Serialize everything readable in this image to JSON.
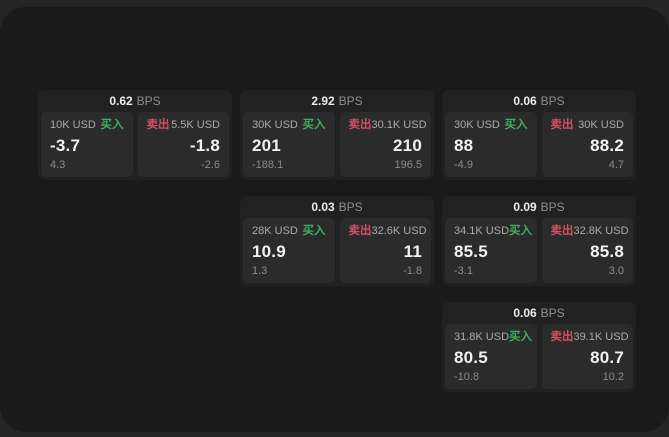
{
  "labels": {
    "buy": "买入",
    "sell": "卖出",
    "bps_unit": "BPS"
  },
  "colors": {
    "buy_accent": "#3fae5f",
    "sell_accent": "#d34f66",
    "panel_bg": "#1a1a1a",
    "card_bg": "#212121",
    "subpanel_bg": "#2b2b2b"
  },
  "cards": [
    {
      "bps": "0.62",
      "buy": {
        "amount": "10K USD",
        "value": "-3.7",
        "sub": "4.3"
      },
      "sell": {
        "amount": "5.5K USD",
        "value": "-1.8",
        "sub": "-2.6"
      }
    },
    {
      "bps": "2.92",
      "buy": {
        "amount": "30K USD",
        "value": "201",
        "sub": "-188.1"
      },
      "sell": {
        "amount": "30.1K USD",
        "value": "210",
        "sub": "196.5"
      }
    },
    {
      "bps": "0.06",
      "buy": {
        "amount": "30K USD",
        "value": "88",
        "sub": "-4.9"
      },
      "sell": {
        "amount": "30K USD",
        "value": "88.2",
        "sub": "4.7"
      }
    },
    {
      "bps": "0.03",
      "buy": {
        "amount": "28K USD",
        "value": "10.9",
        "sub": "1.3"
      },
      "sell": {
        "amount": "32.6K USD",
        "value": "11",
        "sub": "-1.8"
      }
    },
    {
      "bps": "0.09",
      "buy": {
        "amount": "34.1K USD",
        "value": "85.5",
        "sub": "-3.1"
      },
      "sell": {
        "amount": "32.8K USD",
        "value": "85.8",
        "sub": "3.0"
      }
    },
    {
      "bps": "0.06",
      "buy": {
        "amount": "31.8K USD",
        "value": "80.5",
        "sub": "-10.8"
      },
      "sell": {
        "amount": "39.1K USD",
        "value": "80.7",
        "sub": "10.2"
      }
    }
  ]
}
